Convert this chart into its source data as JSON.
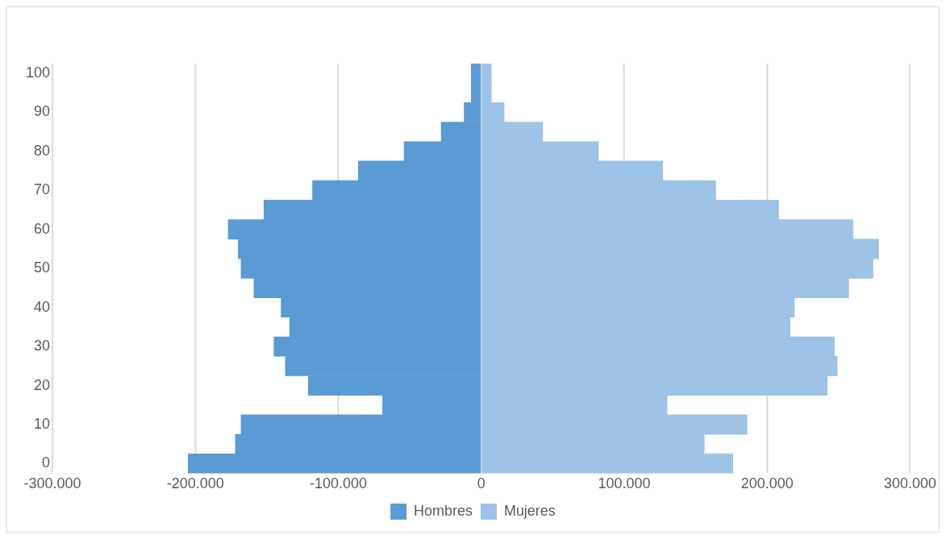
{
  "chart_data": {
    "type": "bar",
    "orientation": "horizontal",
    "stacked": true,
    "categories": [
      "100",
      null,
      "90",
      null,
      "80",
      null,
      "70",
      null,
      "60",
      null,
      "50",
      null,
      "40",
      null,
      "30",
      null,
      "20",
      null,
      "10",
      null,
      "0"
    ],
    "series": [
      {
        "name": "Hombres",
        "color": "#5b9bd5",
        "values": [
          -7000,
          -7000,
          -12000,
          -28000,
          -54000,
          -86000,
          -118000,
          -152000,
          -177000,
          -170000,
          -168000,
          -159000,
          -140000,
          -134000,
          -145000,
          -137000,
          -121000,
          -69000,
          -168000,
          -172000,
          -205000
        ]
      },
      {
        "name": "Mujeres",
        "color": "#9dc3e6",
        "values": [
          7000,
          7000,
          16000,
          43000,
          82000,
          127000,
          164000,
          208000,
          260000,
          278000,
          274000,
          257000,
          219000,
          216000,
          247000,
          249000,
          242000,
          130000,
          186000,
          156000,
          176000
        ]
      }
    ],
    "xlim": [
      -300000,
      300000
    ],
    "xticks": [
      {
        "value": -300000,
        "label": "-300.000"
      },
      {
        "value": -200000,
        "label": "-200.000"
      },
      {
        "value": -100000,
        "label": "-100.000"
      },
      0,
      {
        "value": 100000,
        "label": "100.000"
      },
      {
        "value": 200000,
        "label": "200.000"
      },
      {
        "value": 300000,
        "label": "300.000"
      }
    ],
    "grid": "x",
    "legend": "bottom"
  }
}
